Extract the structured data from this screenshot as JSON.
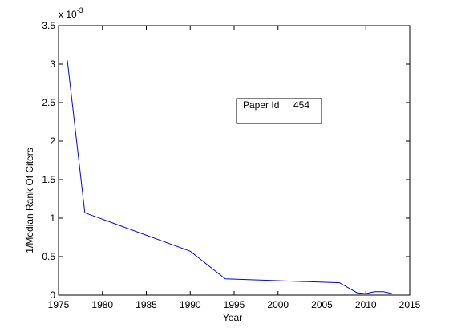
{
  "chart_data": {
    "type": "line",
    "title": "",
    "xlabel": "Year",
    "ylabel": "1/Median Rank Of Citers",
    "xlim": [
      1975,
      2015
    ],
    "ylim": [
      0,
      3.5
    ],
    "x_ticks": [
      "1975",
      "1980",
      "1985",
      "1990",
      "1995",
      "2000",
      "2005",
      "2010",
      "2015"
    ],
    "y_ticks": [
      "0",
      "0.5",
      "1",
      "1.5",
      "2",
      "2.5",
      "3",
      "3.5"
    ],
    "y_tick_values": [
      0,
      0.5,
      1,
      1.5,
      2,
      2.5,
      3,
      3.5
    ],
    "x_tick_values": [
      1975,
      1980,
      1985,
      1990,
      1995,
      2000,
      2005,
      2010,
      2015
    ],
    "y_exponent": {
      "base": "x 10",
      "power": "-3"
    },
    "grid": false,
    "series": [
      {
        "color": "#0000ff",
        "x": [
          1976,
          1978,
          1990,
          1994,
          2007,
          2009,
          2010,
          2011,
          2012,
          2013
        ],
        "y": [
          3.05,
          1.07,
          0.57,
          0.21,
          0.16,
          0.03,
          0.02,
          0.045,
          0.045,
          0.02
        ]
      }
    ],
    "annotations": [
      {
        "label": "Paper Id",
        "value": "454"
      }
    ]
  }
}
